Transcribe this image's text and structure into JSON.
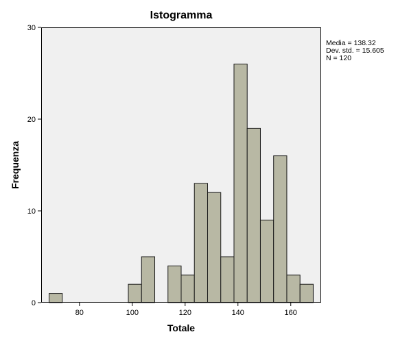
{
  "chart_data": {
    "type": "bar",
    "title": "Istogramma",
    "xlabel": "Totale",
    "ylabel": "Frequenza",
    "xlim": [
      65.5,
      171.5
    ],
    "ylim": [
      0,
      30
    ],
    "x_ticks": [
      80,
      100,
      120,
      140,
      160
    ],
    "y_ticks": [
      0,
      10,
      20,
      30
    ],
    "bin_width": 5,
    "bins": [
      {
        "start": 68.5,
        "count": 1
      },
      {
        "start": 98.5,
        "count": 2
      },
      {
        "start": 103.5,
        "count": 5
      },
      {
        "start": 113.5,
        "count": 4
      },
      {
        "start": 118.5,
        "count": 3
      },
      {
        "start": 123.5,
        "count": 13
      },
      {
        "start": 128.5,
        "count": 12
      },
      {
        "start": 133.5,
        "count": 5
      },
      {
        "start": 138.5,
        "count": 26
      },
      {
        "start": 143.5,
        "count": 19
      },
      {
        "start": 148.5,
        "count": 9
      },
      {
        "start": 153.5,
        "count": 16
      },
      {
        "start": 158.5,
        "count": 3
      },
      {
        "start": 163.5,
        "count": 2
      }
    ],
    "stats": [
      "Media = 138.32",
      "Dev. std. = 15.605",
      "N = 120"
    ],
    "grid": false,
    "colors": {
      "bar_fill": "#b8b8a4",
      "bar_stroke": "#1a1a1a",
      "plot_bg": "#f0f0f0"
    }
  }
}
